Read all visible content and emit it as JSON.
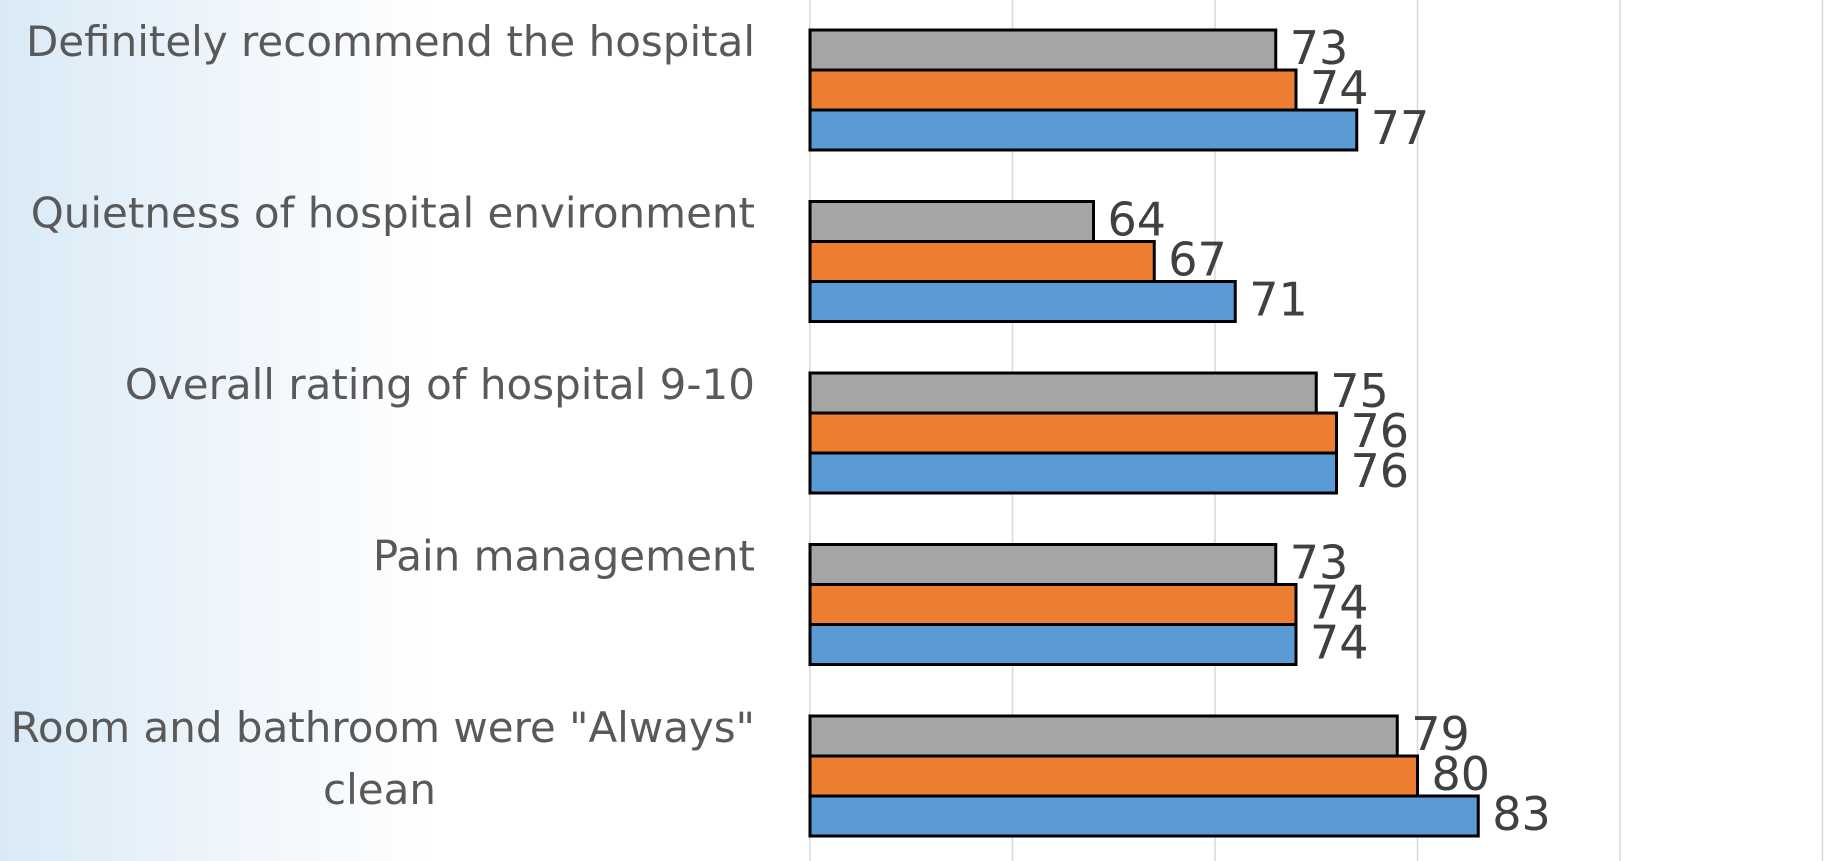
{
  "chart_data": {
    "type": "bar",
    "orientation": "horizontal",
    "categories": [
      "Definitely recommend the hospital",
      "Quietness of hospital environment",
      "Overall rating of hospital 9-10",
      "Pain management",
      "Room and bathroom were \"Always\" clean"
    ],
    "series": [
      {
        "values": [
          73,
          64,
          75,
          73,
          79
        ],
        "color": "#a5a5a5"
      },
      {
        "values": [
          74,
          67,
          76,
          74,
          80
        ],
        "color": "#ed7d31"
      },
      {
        "values": [
          77,
          71,
          76,
          74,
          83
        ],
        "color": "#5b9bd5"
      }
    ],
    "xlim": [
      50,
      100
    ],
    "grid": true,
    "legend": "none",
    "data_labels": true
  }
}
